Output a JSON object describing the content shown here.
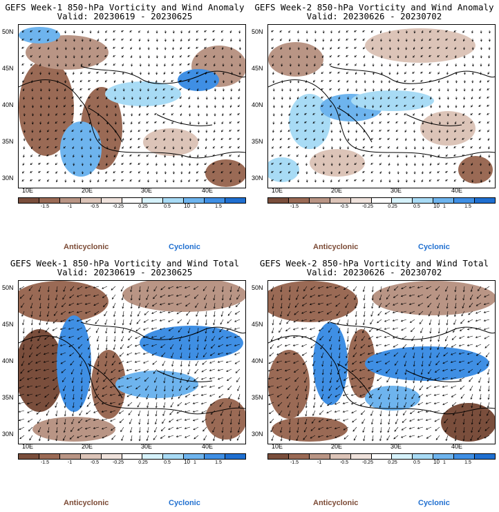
{
  "colors": {
    "anticyclonic": "#7b4a35",
    "cyclonic": "#1f6fd0",
    "scale": [
      "#7a4e3c",
      "#9a6a55",
      "#b99585",
      "#dcc4b8",
      "#efe2dc",
      "#ffffff",
      "#d6f2fb",
      "#a8dbf5",
      "#6eb4ee",
      "#3f8fe4",
      "#1f6fd0"
    ]
  },
  "legend": {
    "tick_labels": [
      "-1.5",
      "-1",
      "-0.5",
      "-0.25",
      "0.25",
      "0.5",
      "1",
      "1.5"
    ],
    "unit": "10",
    "anticyclonic": "Anticyclonic",
    "cyclonic": "Cyclonic"
  },
  "axes": {
    "lat_labels": [
      "50N",
      "45N",
      "40N",
      "35N",
      "30N"
    ],
    "lon_labels": [
      "10E",
      "20E",
      "30E",
      "40E"
    ]
  },
  "panels": [
    {
      "title1": "GEFS Week-1 850-hPa Vorticity and Wind Anomaly",
      "title2": "Valid: 20230619 - 20230625",
      "type": "anomaly"
    },
    {
      "title1": "GEFS Week-2 850-hPa Vorticity and Wind Anomaly",
      "title2": "Valid: 20230626 - 20230702",
      "type": "anomaly"
    },
    {
      "title1": "GEFS Week-1 850-hPa Vorticity and Wind Total",
      "title2": "Valid: 20230619 - 20230625",
      "type": "total"
    },
    {
      "title1": "GEFS Week-2 850-hPa Vorticity and Wind Total",
      "title2": "Valid: 20230626 - 20230702",
      "type": "total"
    }
  ]
}
